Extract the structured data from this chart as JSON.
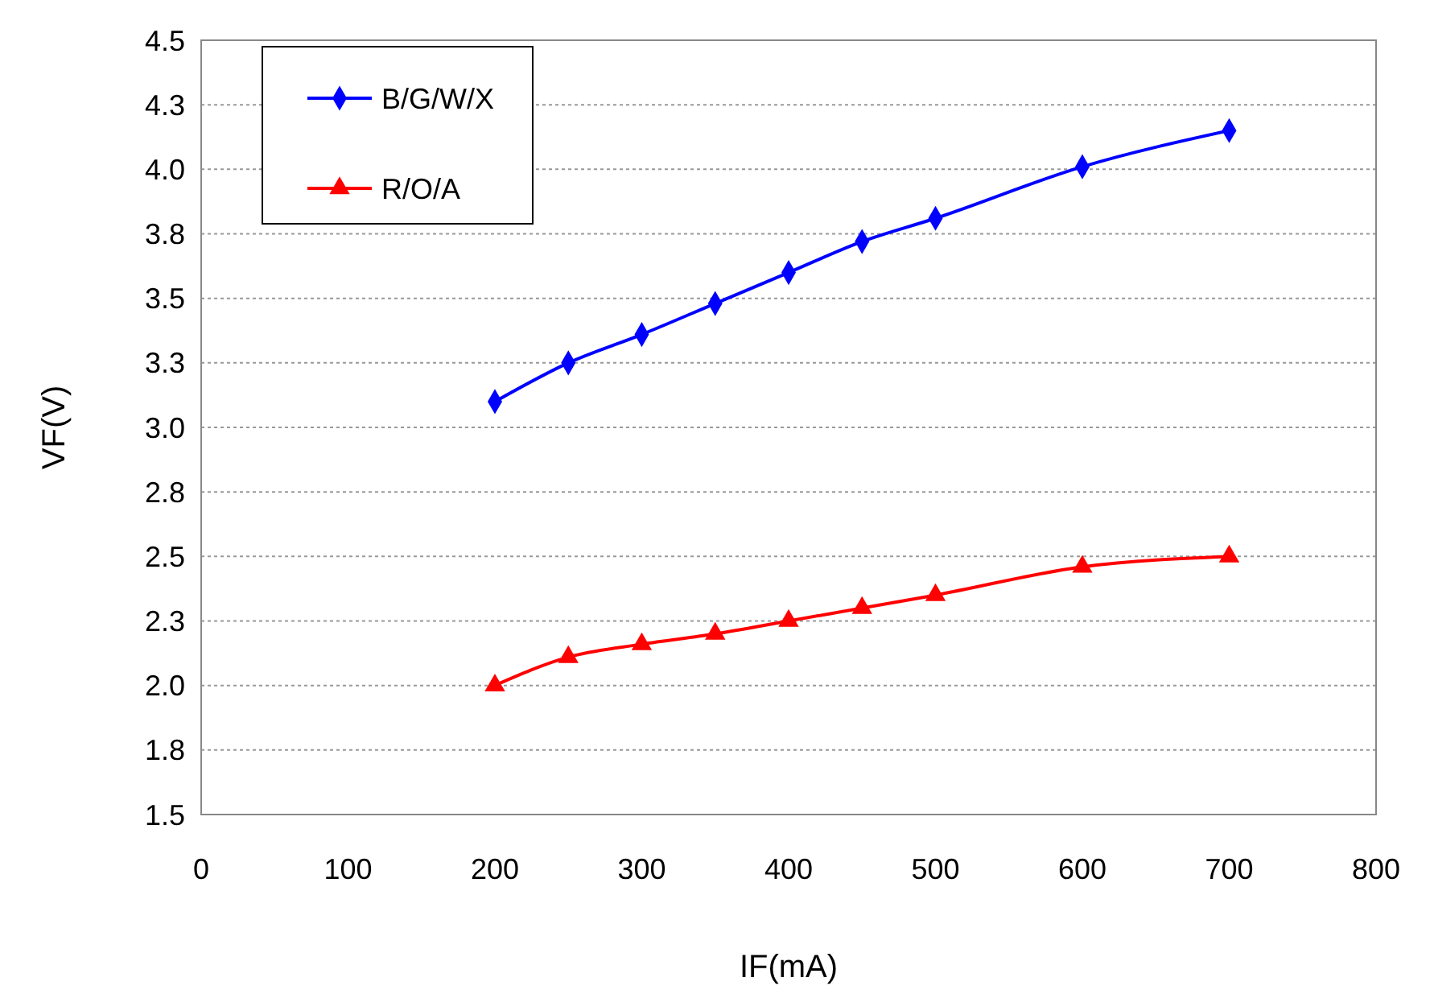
{
  "chart_data": {
    "type": "line",
    "xlabel": "IF(mA)",
    "ylabel": "VF(V)",
    "xlim": [
      0,
      800
    ],
    "xticks": [
      0,
      100,
      200,
      300,
      400,
      500,
      600,
      700,
      800
    ],
    "ylim": [
      1.5,
      4.5
    ],
    "yticks": [
      1.5,
      {
        "value": 1.75,
        "label": "1.8"
      },
      {
        "value": 2,
        "label": "2.0"
      },
      {
        "value": 2.25,
        "label": "2.3"
      },
      2.5,
      {
        "value": 2.75,
        "label": "2.8"
      },
      {
        "value": 3,
        "label": "3.0"
      },
      {
        "value": 3.25,
        "label": "3.3"
      },
      3.5,
      {
        "value": 3.75,
        "label": "3.8"
      },
      {
        "value": 4,
        "label": "4.0"
      },
      {
        "value": 4.25,
        "label": "4.3"
      },
      4.5
    ],
    "grid": "y",
    "legend": "top left",
    "line_style": "solid",
    "x": [
      200,
      250,
      300,
      350,
      400,
      450,
      500,
      600,
      700
    ],
    "series": [
      {
        "name": "B/G/W/X",
        "color": "#0000ff",
        "marker": "diamond",
        "values": [
          3.1,
          3.25,
          3.36,
          3.48,
          3.6,
          3.72,
          3.81,
          4.01,
          4.15
        ]
      },
      {
        "name": "R/O/A",
        "color": "#ff0000",
        "marker": "triangle",
        "values": [
          2.0,
          2.11,
          2.16,
          2.2,
          2.25,
          2.3,
          2.35,
          2.46,
          2.5
        ]
      }
    ]
  }
}
